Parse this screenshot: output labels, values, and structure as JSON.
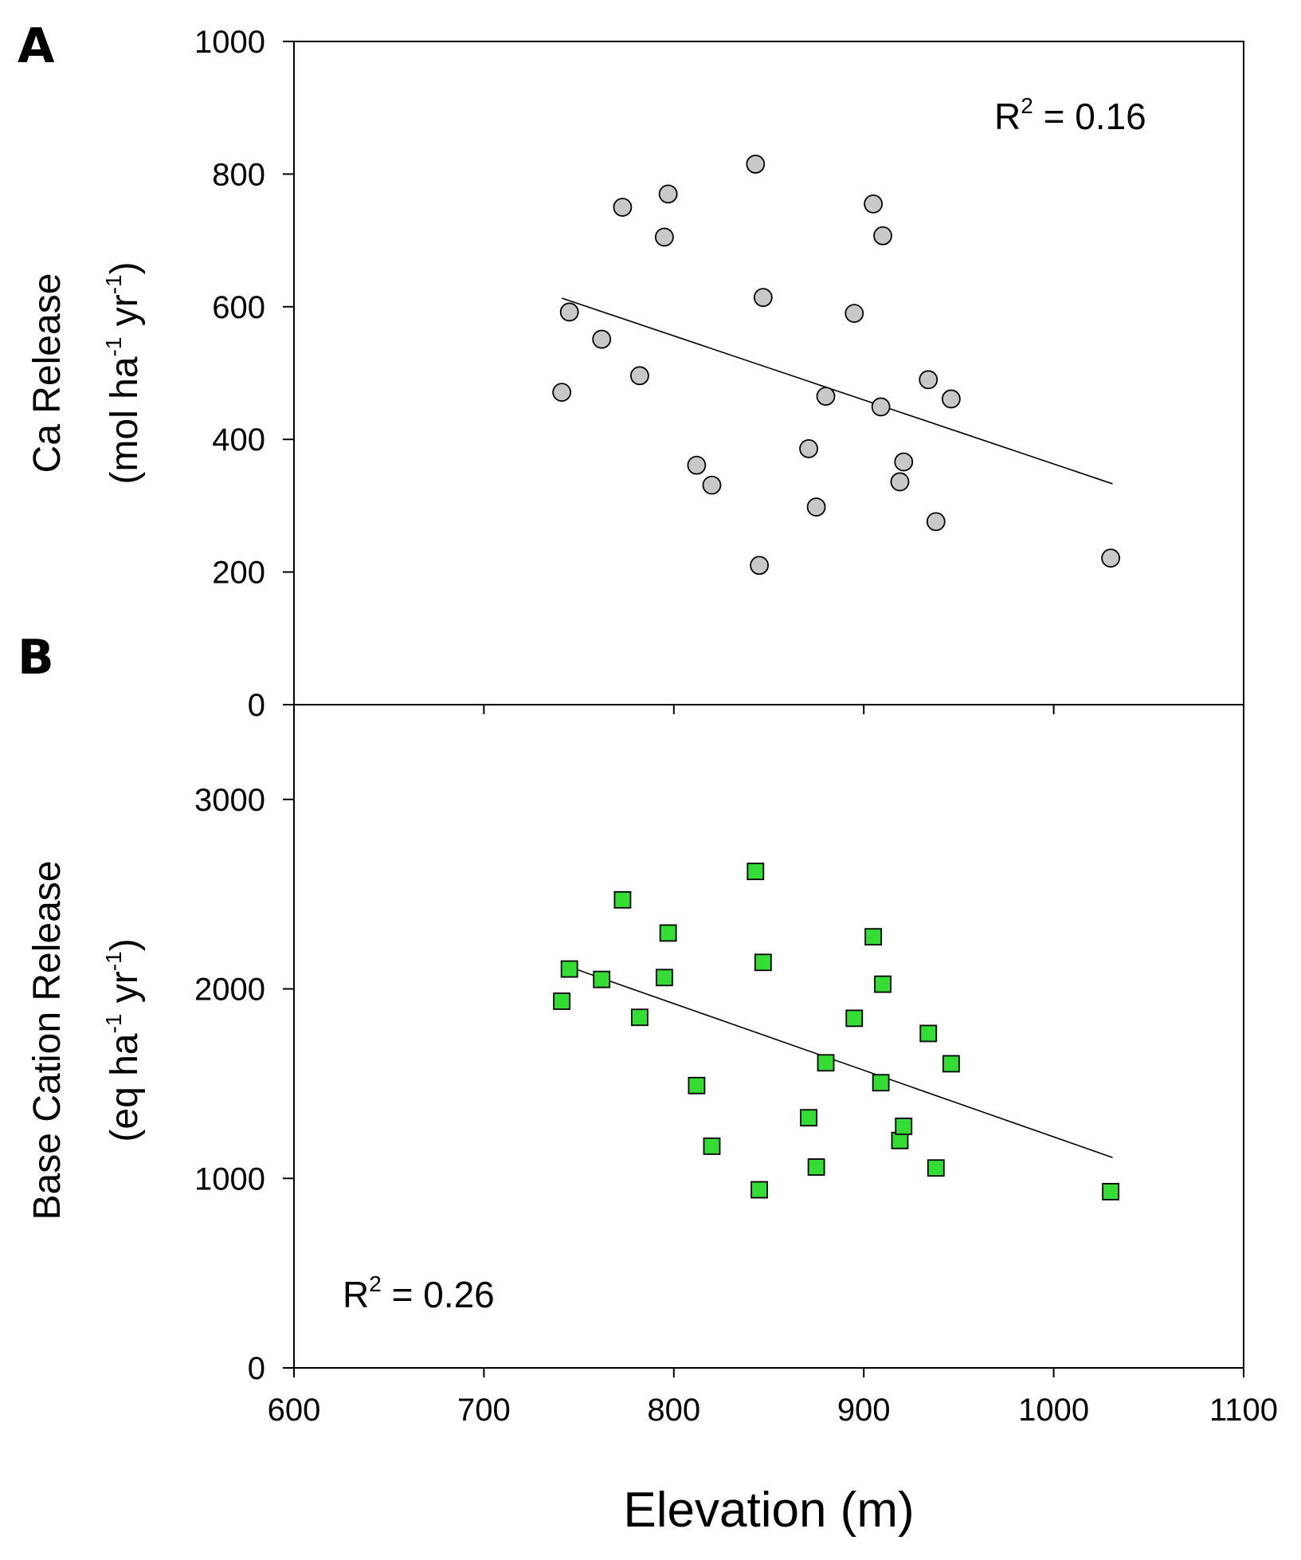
{
  "chart_data": [
    {
      "panel": "A",
      "type": "scatter",
      "ylabel_line1": "Ca Release",
      "ylabel_line2": {
        "pre": "(mol ha",
        "sup1": "-1",
        "mid": " yr",
        "sup2": "-1",
        "post": ")"
      },
      "xlim": [
        600,
        1100
      ],
      "ylim": [
        0,
        1000
      ],
      "yticks": [
        0,
        200,
        400,
        600,
        800,
        1000
      ],
      "annotation": {
        "base": "R",
        "sup": "2",
        "rest": " = 0.16"
      },
      "marker": {
        "shape": "circle",
        "fill": "#c8c8c8"
      },
      "trendline": {
        "x": [
          741,
          1031
        ],
        "y": [
          613,
          333
        ]
      },
      "points": [
        {
          "x": 741,
          "y": 471
        },
        {
          "x": 745,
          "y": 592
        },
        {
          "x": 762,
          "y": 551
        },
        {
          "x": 773,
          "y": 750
        },
        {
          "x": 782,
          "y": 496
        },
        {
          "x": 795,
          "y": 705
        },
        {
          "x": 797,
          "y": 770
        },
        {
          "x": 812,
          "y": 361
        },
        {
          "x": 820,
          "y": 331
        },
        {
          "x": 843,
          "y": 815
        },
        {
          "x": 845,
          "y": 210
        },
        {
          "x": 847,
          "y": 614
        },
        {
          "x": 871,
          "y": 386
        },
        {
          "x": 875,
          "y": 298
        },
        {
          "x": 880,
          "y": 465
        },
        {
          "x": 895,
          "y": 590
        },
        {
          "x": 905,
          "y": 755
        },
        {
          "x": 909,
          "y": 449
        },
        {
          "x": 910,
          "y": 707
        },
        {
          "x": 919,
          "y": 336
        },
        {
          "x": 921,
          "y": 366
        },
        {
          "x": 934,
          "y": 490
        },
        {
          "x": 938,
          "y": 276
        },
        {
          "x": 946,
          "y": 461
        },
        {
          "x": 1030,
          "y": 221
        }
      ]
    },
    {
      "panel": "B",
      "type": "scatter",
      "ylabel_line1": "Base Cation Release",
      "ylabel_line2": {
        "pre": "(eq ha",
        "sup1": "-1",
        "mid": " yr",
        "sup2": "-1",
        "post": ")"
      },
      "xlabel": "Elevation (m)",
      "xlim": [
        600,
        1100
      ],
      "xticks": [
        600,
        700,
        800,
        900,
        1000,
        1100
      ],
      "ylim": [
        0,
        3500
      ],
      "yticks": [
        0,
        1000,
        2000,
        3000
      ],
      "annotation": {
        "base": "R",
        "sup": "2",
        "rest": " = 0.26"
      },
      "marker": {
        "shape": "square",
        "fill": "#33dd33"
      },
      "trendline": {
        "x": [
          741,
          1031
        ],
        "y": [
          2130,
          1110
        ]
      },
      "points": [
        {
          "x": 741,
          "y": 1935
        },
        {
          "x": 745,
          "y": 2105
        },
        {
          "x": 762,
          "y": 2050
        },
        {
          "x": 773,
          "y": 2470
        },
        {
          "x": 782,
          "y": 1850
        },
        {
          "x": 795,
          "y": 2060
        },
        {
          "x": 797,
          "y": 2295
        },
        {
          "x": 812,
          "y": 1490
        },
        {
          "x": 820,
          "y": 1170
        },
        {
          "x": 843,
          "y": 2620
        },
        {
          "x": 845,
          "y": 940
        },
        {
          "x": 847,
          "y": 2140
        },
        {
          "x": 871,
          "y": 1320
        },
        {
          "x": 875,
          "y": 1060
        },
        {
          "x": 880,
          "y": 1610
        },
        {
          "x": 895,
          "y": 1845
        },
        {
          "x": 905,
          "y": 2275
        },
        {
          "x": 909,
          "y": 1505
        },
        {
          "x": 910,
          "y": 2025
        },
        {
          "x": 919,
          "y": 1200
        },
        {
          "x": 921,
          "y": 1275
        },
        {
          "x": 934,
          "y": 1765
        },
        {
          "x": 938,
          "y": 1055
        },
        {
          "x": 946,
          "y": 1605
        },
        {
          "x": 1030,
          "y": 930
        }
      ]
    }
  ]
}
